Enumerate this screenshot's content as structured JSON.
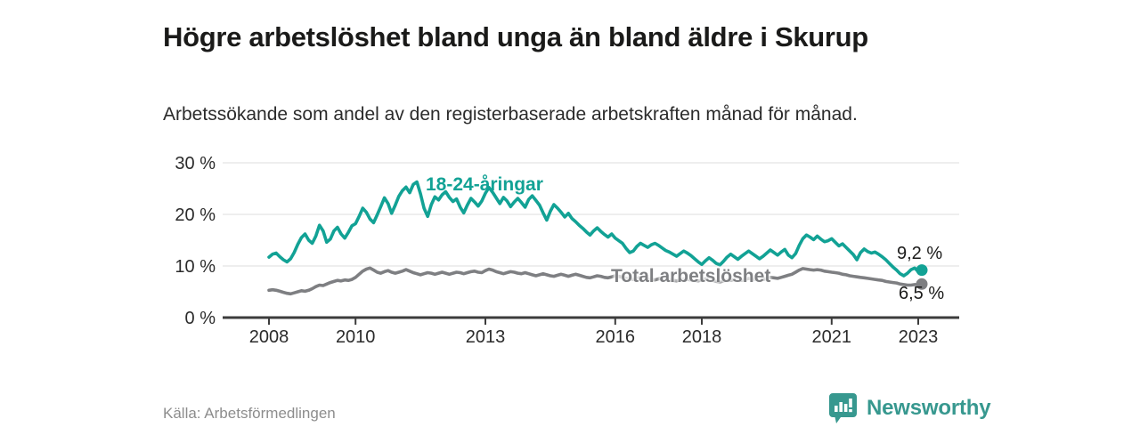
{
  "header": {
    "title": "Högre arbetslöshet bland unga än bland äldre i Skurup",
    "subtitle": "Arbetssökande som andel av den registerbaserade arbetskraften månad för månad."
  },
  "footer": {
    "source": "Källa: Arbetsförmedlingen",
    "brand": "Newsworthy",
    "brand_icon": "bar-chart-speech-bubble-icon"
  },
  "colors": {
    "young": "#12a295",
    "total": "#7e7f82",
    "axis": "#3c3c3c",
    "grid": "#e4e4e4",
    "tick_text": "#2b2b2b",
    "title_text": "#1a1a19",
    "muted_text": "#8d8d8d",
    "brand": "#37988f"
  },
  "chart_data": {
    "type": "line",
    "title": "Högre arbetslöshet bland unga än bland äldre i Skurup",
    "xlabel": "",
    "ylabel": "",
    "x_start_year": 2008,
    "x_start_month": 1,
    "frequency": "monthly",
    "x_ticks": [
      2008,
      2010,
      2013,
      2016,
      2018,
      2021,
      2023
    ],
    "y_ticks": [
      {
        "value": 0,
        "label": "0 %"
      },
      {
        "value": 10,
        "label": "10 %"
      },
      {
        "value": 20,
        "label": "20 %"
      },
      {
        "value": 30,
        "label": "30 %"
      }
    ],
    "ylim": [
      0,
      31
    ],
    "grid": "horizontal-only",
    "legend_position": "inline-labels",
    "series": [
      {
        "name": "18-24-åringar",
        "color": "#12a295",
        "end_label": "9,2 %",
        "last_value": 9.2,
        "values": [
          11.7,
          12.3,
          12.5,
          11.8,
          11.2,
          10.8,
          11.4,
          12.6,
          14.2,
          15.5,
          16.2,
          15.0,
          14.4,
          15.8,
          17.9,
          16.8,
          14.6,
          15.2,
          16.8,
          17.5,
          16.2,
          15.4,
          16.5,
          17.8,
          18.2,
          19.6,
          21.2,
          20.4,
          19.1,
          18.4,
          19.9,
          21.5,
          23.2,
          22.1,
          20.2,
          21.8,
          23.5,
          24.6,
          25.3,
          24.2,
          25.8,
          26.3,
          24.0,
          21.2,
          19.6,
          21.9,
          23.4,
          22.8,
          23.8,
          24.4,
          23.3,
          22.5,
          23.0,
          21.4,
          20.3,
          21.8,
          23.1,
          22.4,
          21.6,
          22.6,
          24.1,
          25.2,
          24.3,
          23.2,
          22.1,
          23.3,
          22.6,
          21.5,
          22.4,
          23.1,
          22.3,
          21.4,
          22.9,
          23.6,
          22.7,
          21.8,
          20.3,
          18.9,
          20.6,
          21.9,
          21.2,
          20.4,
          19.5,
          20.2,
          19.2,
          18.6,
          17.9,
          17.3,
          16.6,
          16.0,
          16.8,
          17.4,
          16.7,
          16.1,
          15.6,
          16.2,
          15.4,
          14.9,
          14.4,
          13.4,
          12.6,
          12.9,
          13.8,
          14.4,
          14.0,
          13.6,
          14.1,
          14.4,
          14.0,
          13.5,
          13.0,
          12.7,
          12.3,
          11.9,
          12.4,
          12.9,
          12.5,
          12.0,
          11.4,
          10.8,
          10.3,
          11.0,
          11.6,
          11.1,
          10.5,
          10.2,
          10.9,
          11.7,
          12.3,
          11.8,
          11.3,
          11.9,
          12.4,
          12.9,
          12.4,
          11.9,
          11.4,
          11.9,
          12.5,
          13.1,
          12.6,
          12.1,
          12.7,
          13.2,
          12.1,
          11.6,
          12.4,
          14.0,
          15.3,
          16.0,
          15.6,
          15.1,
          15.8,
          15.2,
          14.7,
          14.9,
          15.3,
          14.6,
          13.9,
          14.3,
          13.6,
          12.9,
          12.2,
          11.2,
          12.6,
          13.3,
          12.8,
          12.5,
          12.7,
          12.3,
          11.8,
          11.2,
          10.5,
          9.8,
          9.2,
          8.5,
          8.1,
          8.6,
          9.3,
          9.6,
          8.9,
          9.2
        ]
      },
      {
        "name": "Total arbetslöshet",
        "color": "#7e7f82",
        "end_label": "6,5 %",
        "last_value": 6.5,
        "values": [
          5.3,
          5.4,
          5.3,
          5.1,
          4.9,
          4.7,
          4.6,
          4.8,
          5.0,
          5.2,
          5.1,
          5.3,
          5.6,
          6.0,
          6.3,
          6.2,
          6.5,
          6.8,
          7.0,
          7.2,
          7.1,
          7.3,
          7.2,
          7.4,
          7.8,
          8.4,
          9.0,
          9.4,
          9.6,
          9.2,
          8.8,
          8.6,
          8.9,
          9.1,
          8.8,
          8.6,
          8.8,
          9.0,
          9.3,
          9.0,
          8.7,
          8.5,
          8.3,
          8.5,
          8.7,
          8.6,
          8.4,
          8.6,
          8.8,
          8.6,
          8.4,
          8.6,
          8.8,
          8.7,
          8.5,
          8.7,
          8.9,
          9.0,
          8.8,
          8.7,
          9.1,
          9.4,
          9.2,
          8.9,
          8.7,
          8.5,
          8.7,
          8.9,
          8.8,
          8.6,
          8.5,
          8.7,
          8.5,
          8.3,
          8.1,
          8.3,
          8.5,
          8.3,
          8.1,
          8.0,
          8.2,
          8.4,
          8.2,
          8.0,
          8.2,
          8.4,
          8.2,
          8.0,
          7.8,
          7.7,
          7.9,
          8.1,
          8.0,
          7.8,
          7.7,
          7.9,
          8.1,
          8.0,
          7.8,
          7.6,
          7.5,
          7.4,
          7.6,
          7.8,
          7.7,
          7.5,
          7.4,
          7.3,
          7.5,
          7.7,
          7.5,
          7.3,
          7.2,
          7.1,
          7.3,
          7.5,
          7.4,
          7.3,
          7.2,
          7.1,
          7.3,
          7.5,
          7.4,
          7.2,
          7.0,
          6.9,
          7.1,
          7.3,
          7.2,
          7.4,
          7.3,
          7.2,
          7.4,
          7.6,
          7.5,
          7.4,
          7.3,
          7.4,
          7.6,
          7.8,
          7.7,
          7.6,
          7.8,
          8.0,
          8.2,
          8.4,
          8.8,
          9.2,
          9.5,
          9.4,
          9.3,
          9.2,
          9.3,
          9.2,
          9.0,
          8.9,
          8.8,
          8.7,
          8.6,
          8.4,
          8.3,
          8.1,
          8.0,
          7.9,
          7.8,
          7.7,
          7.6,
          7.5,
          7.4,
          7.3,
          7.2,
          7.0,
          6.9,
          6.8,
          6.7,
          6.5,
          6.4,
          6.3,
          6.3,
          6.4,
          6.4,
          6.5
        ]
      }
    ]
  }
}
